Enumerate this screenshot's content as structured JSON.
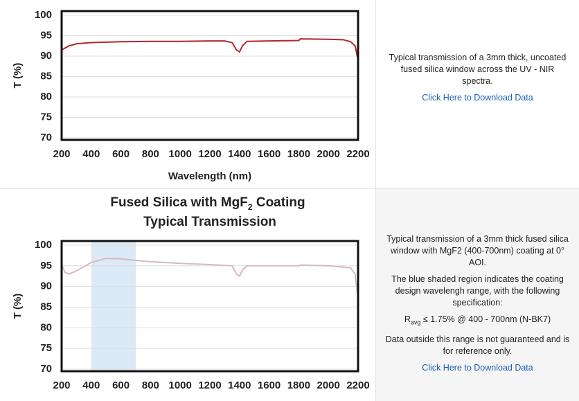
{
  "chart_data": [
    {
      "type": "line",
      "ylabel": "T (%)",
      "xlabel": "Wavelength (nm)",
      "x": [
        200,
        250,
        300,
        400,
        600,
        800,
        1000,
        1200,
        1300,
        1350,
        1380,
        1400,
        1420,
        1450,
        1600,
        1800,
        1810,
        2000,
        2100,
        2150,
        2180,
        2200
      ],
      "values": [
        91.5,
        92.5,
        93,
        93.3,
        93.5,
        93.6,
        93.6,
        93.7,
        93.7,
        93.3,
        91.5,
        91,
        92.5,
        93.6,
        93.7,
        93.8,
        94.2,
        94.1,
        94,
        93.5,
        92.5,
        89
      ],
      "color": "#b3262b",
      "xlim": [
        200,
        2200
      ],
      "xticks": [
        200,
        400,
        600,
        800,
        1000,
        1200,
        1400,
        1600,
        1800,
        2000,
        2200
      ],
      "ylim": [
        69.5,
        101
      ],
      "yticks": [
        70,
        75,
        80,
        85,
        90,
        95,
        100
      ],
      "grid": true
    },
    {
      "type": "line",
      "title": {
        "main": "Fused Silica with MgF",
        "sub": "2",
        "rest": " Coating"
      },
      "subtitle": "Typical Transmission",
      "ylabel": "T (%)",
      "x": [
        200,
        220,
        250,
        300,
        400,
        500,
        600,
        700,
        800,
        1000,
        1200,
        1350,
        1380,
        1400,
        1420,
        1450,
        1600,
        1800,
        1810,
        2000,
        2100,
        2150,
        2180,
        2200
      ],
      "values": [
        95.5,
        93.5,
        93,
        93.8,
        95.8,
        96.8,
        96.7,
        96.3,
        96,
        95.6,
        95.3,
        95,
        93,
        92.5,
        94,
        95,
        95,
        95,
        95.2,
        95,
        94.7,
        94.5,
        93,
        87
      ],
      "color": "#d8b8c2",
      "shade": {
        "x": [
          400,
          700
        ],
        "color": "#dce9f6"
      },
      "xlim": [
        200,
        2200
      ],
      "xticks": [
        200,
        400,
        600,
        800,
        1000,
        1200,
        1400,
        1600,
        1800,
        2000,
        2200
      ],
      "ylim": [
        69.5,
        101
      ],
      "yticks": [
        70,
        75,
        80,
        85,
        90,
        95,
        100
      ],
      "grid": true
    }
  ],
  "panels": [
    {
      "paragraphs": [
        "Typical transmission of a 3mm thick, uncoated fused silica window across the UV - NIR spectra."
      ],
      "link": "Click Here to Download Data"
    },
    {
      "paragraphs": [
        "Typical transmission of a 3mm thick fused silica window with MgF2 (400-700nm) coating at 0° AOI.",
        "The blue shaded region indicates the coating design wavelengh range, with the following specification:"
      ],
      "spec": {
        "main": "R",
        "sub": "avg",
        "rest": " ≤ 1.75% @ 400 - 700nm (N-BK7)"
      },
      "note": "Data outside this range is not guaranteed and is for reference only.",
      "link": "Click Here to Download Data"
    }
  ]
}
